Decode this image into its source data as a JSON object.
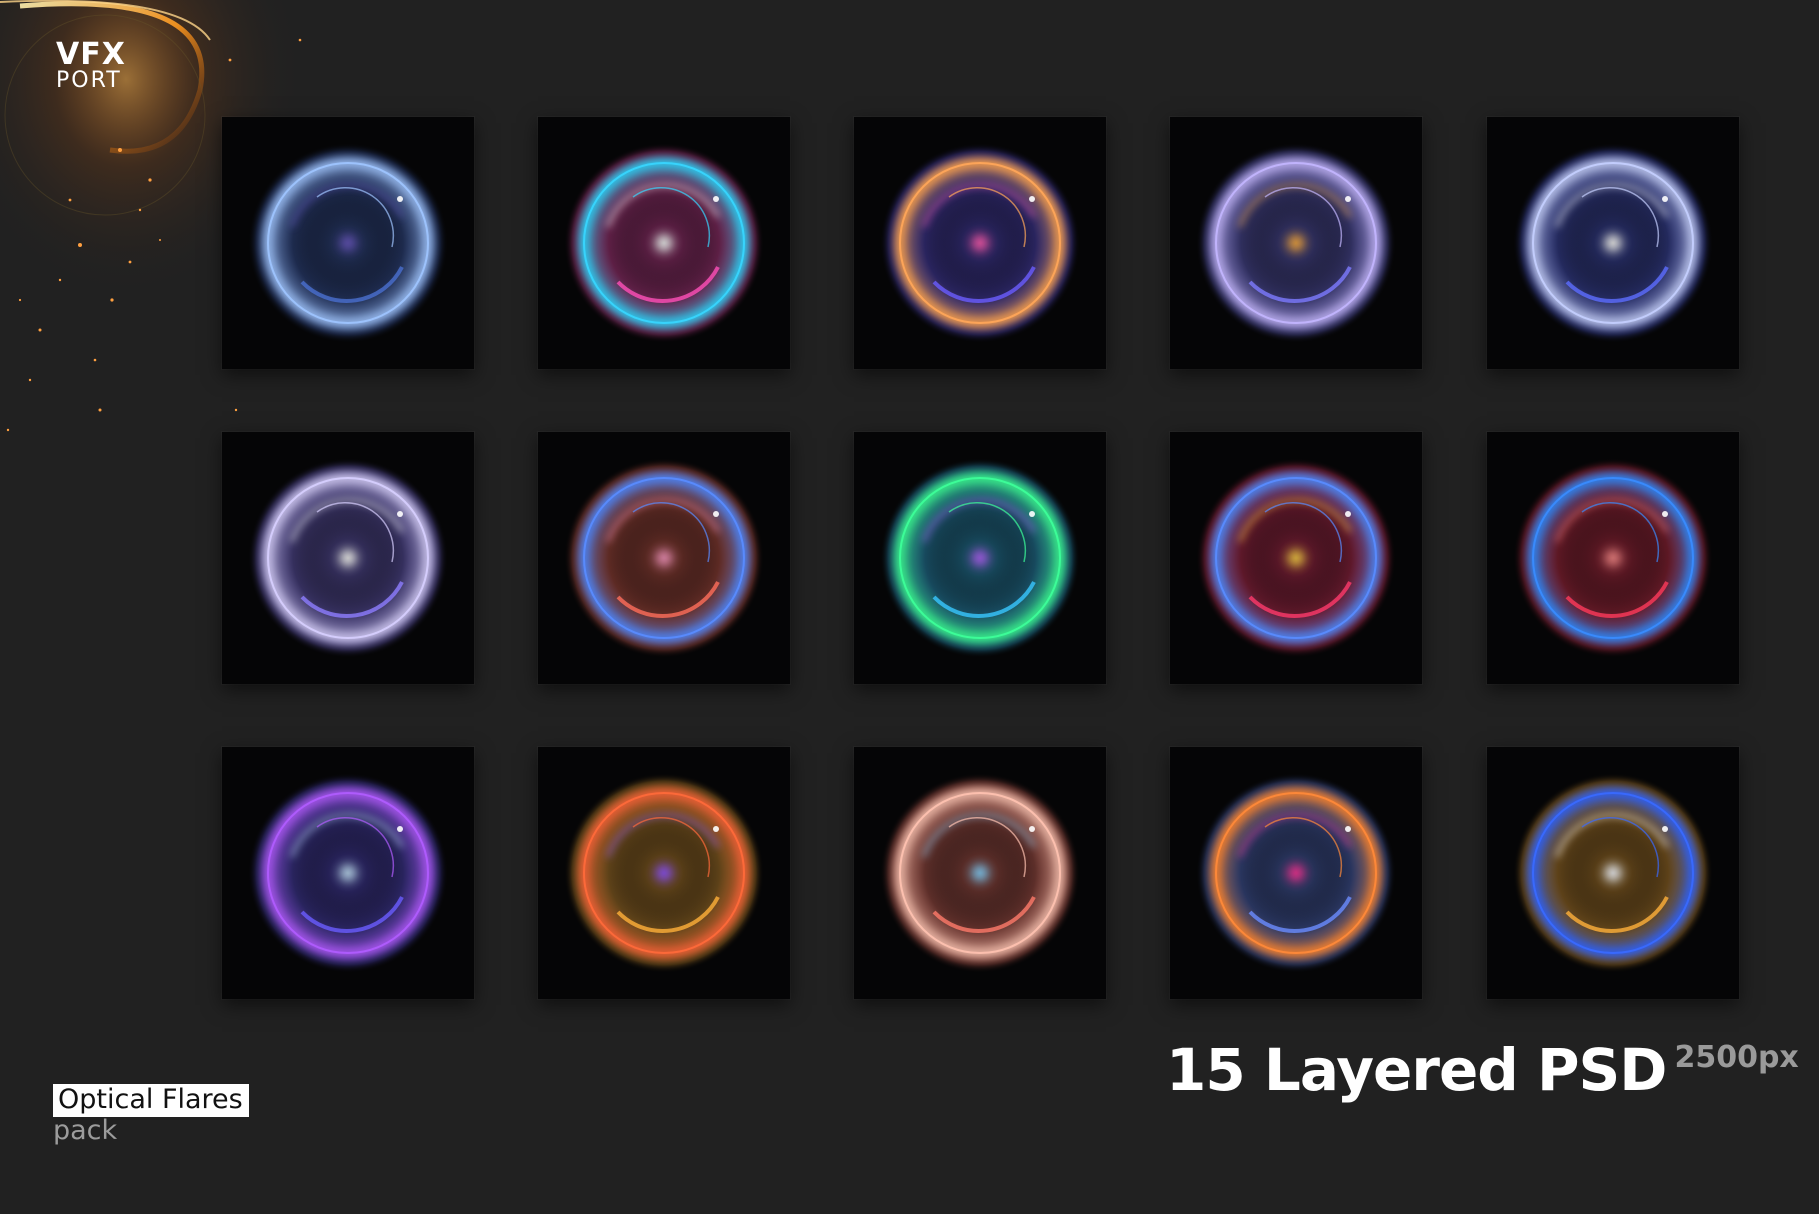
{
  "logo": {
    "line1": "VFX",
    "line2": "PORT"
  },
  "product": {
    "title": "Optical Flares",
    "subtitle": "pack"
  },
  "headline": {
    "main": "15 Layered PSD",
    "resolution": "2500px"
  },
  "colors": {
    "background": "#212121",
    "tile": "#050506",
    "badge": "#ffffff",
    "muted_text": "#9a9a9a"
  },
  "previews": [
    {
      "name": "blue-smoke-sphere",
      "colors": [
        "#4a6fd0",
        "#9fc4ff",
        "#6a5cc4"
      ]
    },
    {
      "name": "pink-cyan-vortex",
      "colors": [
        "#ff4fb8",
        "#38d6ff",
        "#ffffff"
      ]
    },
    {
      "name": "prism-bubble",
      "colors": [
        "#6a5cff",
        "#ffa65a",
        "#ff5fb8"
      ]
    },
    {
      "name": "violet-particle-sphere",
      "colors": [
        "#7d7bff",
        "#c3b6ff",
        "#ffb04a"
      ]
    },
    {
      "name": "hud-ring",
      "colors": [
        "#5c6dff",
        "#c4cfff",
        "#ffffff"
      ]
    },
    {
      "name": "lilac-glow-orb",
      "colors": [
        "#8d7dff",
        "#d7cfff",
        "#ffffff"
      ]
    },
    {
      "name": "coral-swirl-ring",
      "colors": [
        "#ff6e5a",
        "#5a8cff",
        "#ff9ac0"
      ]
    },
    {
      "name": "rainbow-bubble-ring",
      "colors": [
        "#38c7ff",
        "#3dff9a",
        "#b16bff"
      ]
    },
    {
      "name": "red-rainbow-arc",
      "colors": [
        "#ff3a6a",
        "#5a8cff",
        "#ffcf4a"
      ]
    },
    {
      "name": "red-blue-swirl",
      "colors": [
        "#ff3a5a",
        "#3a8cff",
        "#ff8a8a"
      ]
    },
    {
      "name": "galaxy-glass-sphere",
      "colors": [
        "#6a5cff",
        "#b05cff",
        "#c6e4ff"
      ]
    },
    {
      "name": "golden-fire-ring",
      "colors": [
        "#ffb03a",
        "#ff6a3a",
        "#9a5cff"
      ]
    },
    {
      "name": "peach-light-ring",
      "colors": [
        "#ff7a6a",
        "#ffc2b0",
        "#8fd6ff"
      ]
    },
    {
      "name": "crystal-fire-sphere",
      "colors": [
        "#6a8cff",
        "#ff8a3a",
        "#ff3aa0"
      ]
    },
    {
      "name": "sun-blue-core",
      "colors": [
        "#ffb03a",
        "#3a6aff",
        "#ffffff"
      ]
    }
  ]
}
